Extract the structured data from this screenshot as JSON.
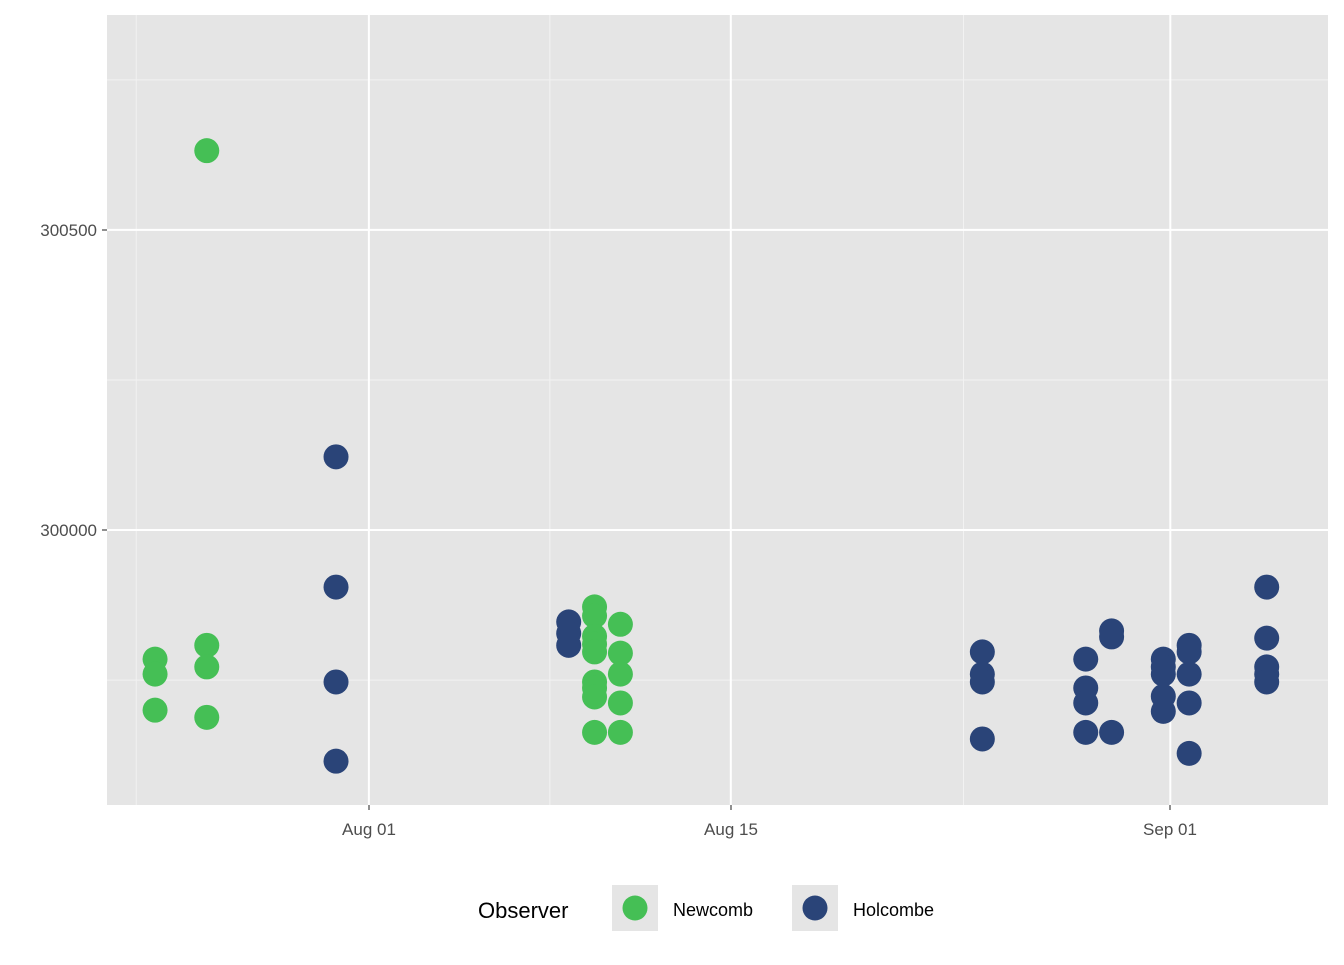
{
  "chart_data": {
    "type": "scatter",
    "title": "",
    "xlabel": "",
    "ylabel": "",
    "x_ticks": [
      {
        "date": "08-01",
        "label": "Aug 01"
      },
      {
        "date": "08-15",
        "label": "Aug 15"
      },
      {
        "date": "09-01",
        "label": "Sep 01"
      }
    ],
    "x_minor_ticks": [
      "07-23",
      "08-08",
      "08-24"
    ],
    "y_ticks": [
      {
        "value": 300000,
        "label": "300000"
      },
      {
        "value": 300500,
        "label": "300500"
      }
    ],
    "y_minor_ticks": [
      299750,
      300250,
      300750
    ],
    "xlim": [
      "07-21.87",
      "09-07.1"
    ],
    "ylim": [
      299542,
      300858
    ],
    "grid": true,
    "legend": {
      "title": "Observer",
      "placement": "bottom",
      "entries": [
        {
          "name": "Newcomb",
          "color": "#45BF55"
        },
        {
          "name": "Holcombe",
          "color": "#2A4478"
        }
      ]
    },
    "series": [
      {
        "name": "Newcomb",
        "color": "#45BF55",
        "points": [
          [
            "07-24",
            299785
          ],
          [
            "07-24",
            299760
          ],
          [
            "07-24",
            299700
          ],
          [
            "07-26",
            300632
          ],
          [
            "07-26",
            299808
          ],
          [
            "07-26",
            299772
          ],
          [
            "07-26",
            299688
          ],
          [
            "08-10",
            299872
          ],
          [
            "08-10",
            299857
          ],
          [
            "08-10",
            299823
          ],
          [
            "08-10",
            299810
          ],
          [
            "08-10",
            299797
          ],
          [
            "08-10",
            299747
          ],
          [
            "08-10",
            299737
          ],
          [
            "08-10",
            299722
          ],
          [
            "08-10",
            299663
          ],
          [
            "08-11",
            299843
          ],
          [
            "08-11",
            299795
          ],
          [
            "08-11",
            299760
          ],
          [
            "08-11",
            299712
          ],
          [
            "08-11",
            299663
          ]
        ]
      },
      {
        "name": "Holcombe",
        "color": "#2A4478",
        "points": [
          [
            "07-31",
            300122
          ],
          [
            "07-31",
            299905
          ],
          [
            "07-31",
            299747
          ],
          [
            "07-31",
            299615
          ],
          [
            "08-09",
            299847
          ],
          [
            "08-09",
            299828
          ],
          [
            "08-09",
            299808
          ],
          [
            "08-25",
            299797
          ],
          [
            "08-25",
            299760
          ],
          [
            "08-25",
            299747
          ],
          [
            "08-25",
            299652
          ],
          [
            "08-29",
            299785
          ],
          [
            "08-29",
            299737
          ],
          [
            "08-29",
            299712
          ],
          [
            "08-29",
            299663
          ],
          [
            "08-30",
            299832
          ],
          [
            "08-30",
            299822
          ],
          [
            "08-30",
            299663
          ],
          [
            "09-01",
            299785
          ],
          [
            "09-01",
            299772
          ],
          [
            "09-01",
            299760
          ],
          [
            "09-01",
            299723
          ],
          [
            "09-01",
            299698
          ],
          [
            "09-02",
            299808
          ],
          [
            "09-02",
            299797
          ],
          [
            "09-02",
            299760
          ],
          [
            "09-02",
            299712
          ],
          [
            "09-02",
            299628
          ],
          [
            "09-05",
            299905
          ],
          [
            "09-05",
            299820
          ],
          [
            "09-05",
            299772
          ],
          [
            "09-05",
            299760
          ],
          [
            "09-05",
            299747
          ]
        ]
      }
    ]
  }
}
